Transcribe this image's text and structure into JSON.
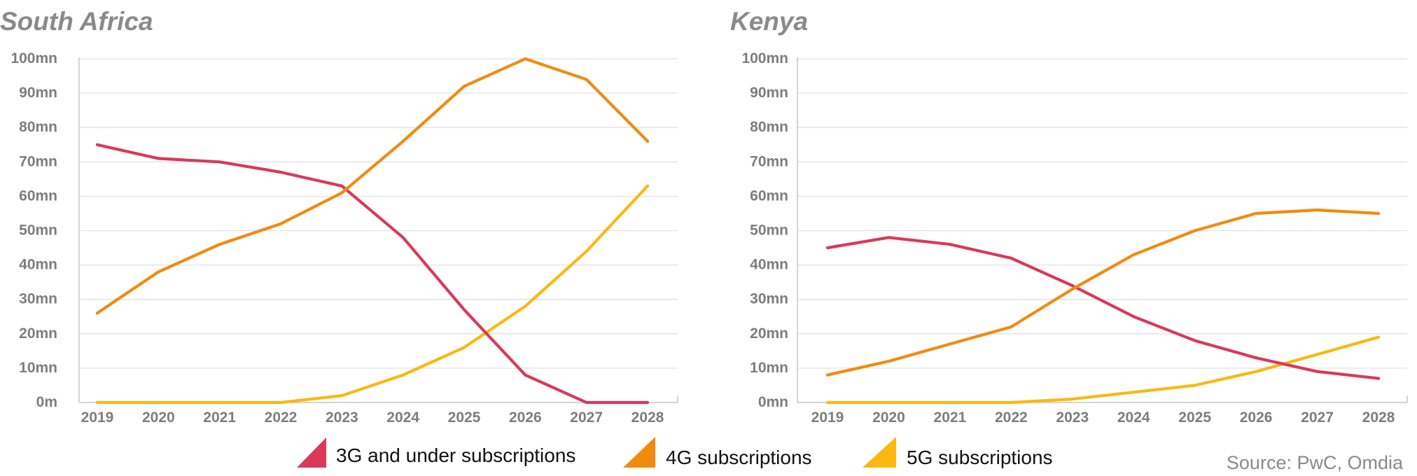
{
  "chart_data": [
    {
      "type": "line",
      "title": "South Africa",
      "x": [
        "2019",
        "2020",
        "2021",
        "2022",
        "2023",
        "2024",
        "2025",
        "2026",
        "2027",
        "2028"
      ],
      "y_ticks": [
        "0m",
        "10mn",
        "20mn",
        "30mn",
        "40mn",
        "50mn",
        "60mn",
        "70mn",
        "80mn",
        "90mn",
        "100mn"
      ],
      "ylim": [
        0,
        100
      ],
      "grid": true,
      "series": [
        {
          "name": "3G and under subscriptions",
          "color": "#d9395a",
          "values": [
            75,
            71,
            70,
            67,
            63,
            48,
            27,
            8,
            0,
            0
          ]
        },
        {
          "name": "4G subscriptions",
          "color": "#f28a0f",
          "values": [
            26,
            38,
            46,
            52,
            61,
            76,
            92,
            100,
            94,
            76
          ]
        },
        {
          "name": "5G subscriptions",
          "color": "#fbb812",
          "values": [
            0,
            0,
            0,
            0,
            2,
            8,
            16,
            28,
            44,
            63
          ]
        }
      ]
    },
    {
      "type": "line",
      "title": "Kenya",
      "x": [
        "2019",
        "2020",
        "2021",
        "2022",
        "2023",
        "2024",
        "2025",
        "2026",
        "2027",
        "2028"
      ],
      "y_ticks": [
        "0mn",
        "10mn",
        "20mn",
        "30mn",
        "40mn",
        "50mn",
        "60mn",
        "70mn",
        "80mn",
        "90mn",
        "100mn"
      ],
      "ylim": [
        0,
        100
      ],
      "grid": true,
      "series": [
        {
          "name": "3G and under subscriptions",
          "color": "#d9395a",
          "values": [
            45,
            48,
            46,
            42,
            34,
            25,
            18,
            13,
            9,
            7
          ]
        },
        {
          "name": "4G subscriptions",
          "color": "#f28a0f",
          "values": [
            8,
            12,
            17,
            22,
            33,
            43,
            50,
            55,
            56,
            55
          ]
        },
        {
          "name": "5G subscriptions",
          "color": "#fbb812",
          "values": [
            0,
            0,
            0,
            0,
            1,
            3,
            5,
            9,
            14,
            19
          ]
        }
      ]
    }
  ],
  "legend": [
    {
      "label": "3G and under subscriptions",
      "color": "#d9395a"
    },
    {
      "label": "4G subscriptions",
      "color": "#f28a0f"
    },
    {
      "label": "5G subscriptions",
      "color": "#fbb812"
    }
  ],
  "source": "Source: PwC, Omdia"
}
